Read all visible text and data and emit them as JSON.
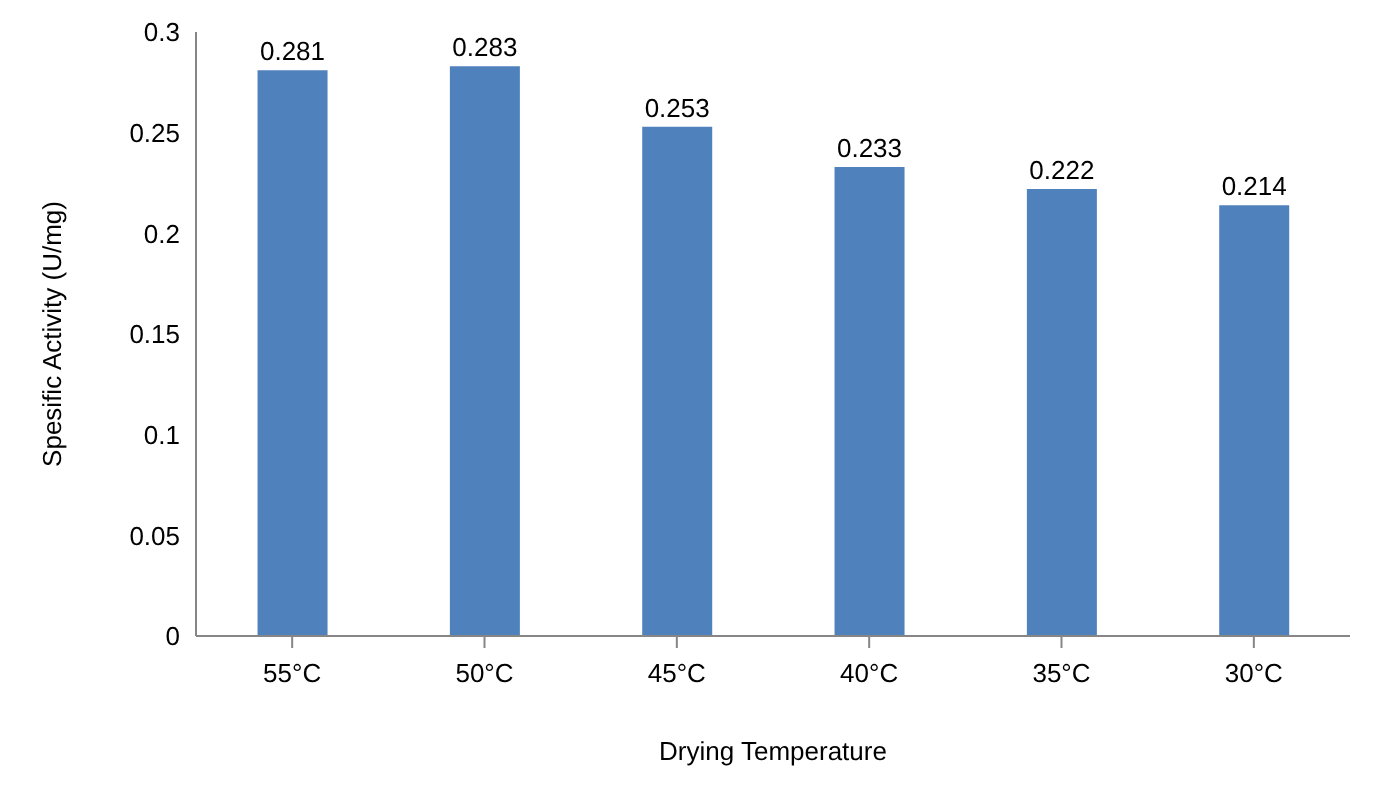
{
  "chart_data": {
    "type": "bar",
    "xlabel": "Drying Temperature",
    "ylabel": "Spesific Activity (U/mg)",
    "categories": [
      "55°C",
      "50°C",
      "45°C",
      "40°C",
      "35°C",
      "30°C"
    ],
    "values": [
      0.281,
      0.283,
      0.253,
      0.233,
      0.222,
      0.214
    ],
    "color": "#4f81bd",
    "ylim": [
      0,
      0.3
    ],
    "yticks": [
      0,
      0.05,
      0.1,
      0.15,
      0.2,
      0.25,
      0.3
    ],
    "data_labels": true,
    "grid": false,
    "legend": false
  }
}
